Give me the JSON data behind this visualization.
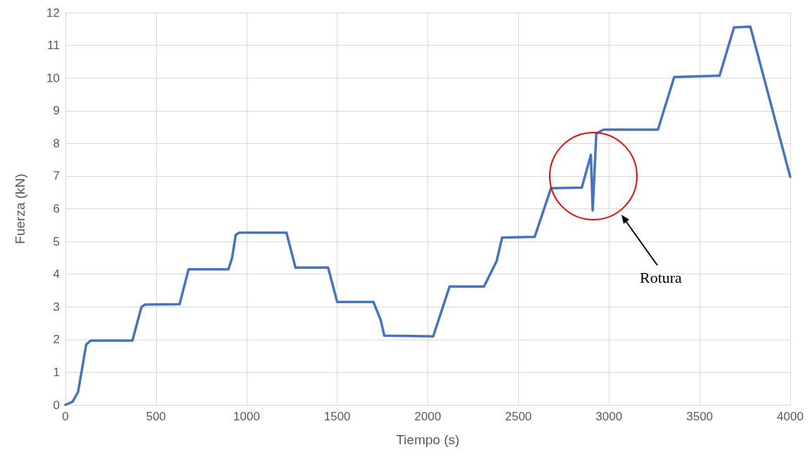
{
  "chart_data": {
    "type": "line",
    "xlabel": "Tiempo (s)",
    "ylabel": "Fuerza (kN)",
    "xlim": [
      0,
      4000
    ],
    "xticks": [
      0,
      500,
      1000,
      1500,
      2000,
      2500,
      3000,
      3500,
      4000
    ],
    "ylim": [
      0,
      12
    ],
    "yticks": [
      0,
      1,
      2,
      3,
      4,
      5,
      6,
      7,
      8,
      9,
      10,
      11,
      12
    ],
    "grid": true,
    "marker": "none",
    "line_style": "solid",
    "annotations": [
      "Rotura"
    ],
    "series": [
      {
        "color": "#4472c4",
        "x": [
          0,
          40,
          70,
          95,
          115,
          140,
          370,
          420,
          440,
          630,
          680,
          900,
          920,
          940,
          960,
          1220,
          1270,
          1450,
          1500,
          1700,
          1740,
          1760,
          2030,
          2120,
          2310,
          2380,
          2410,
          2590,
          2680,
          2850,
          2900,
          2910,
          2930,
          2970,
          3270,
          3360,
          3610,
          3690,
          3780,
          4000
        ],
        "values": [
          0,
          0.1,
          0.4,
          1.2,
          1.85,
          1.97,
          1.97,
          3.0,
          3.07,
          3.08,
          4.15,
          4.15,
          4.5,
          5.2,
          5.27,
          5.27,
          4.2,
          4.2,
          3.15,
          3.15,
          2.6,
          2.12,
          2.1,
          3.62,
          3.62,
          4.4,
          5.12,
          5.14,
          6.63,
          6.65,
          7.65,
          5.95,
          8.3,
          8.42,
          8.42,
          10.03,
          10.07,
          11.55,
          11.57,
          6.98
        ]
      }
    ]
  }
}
